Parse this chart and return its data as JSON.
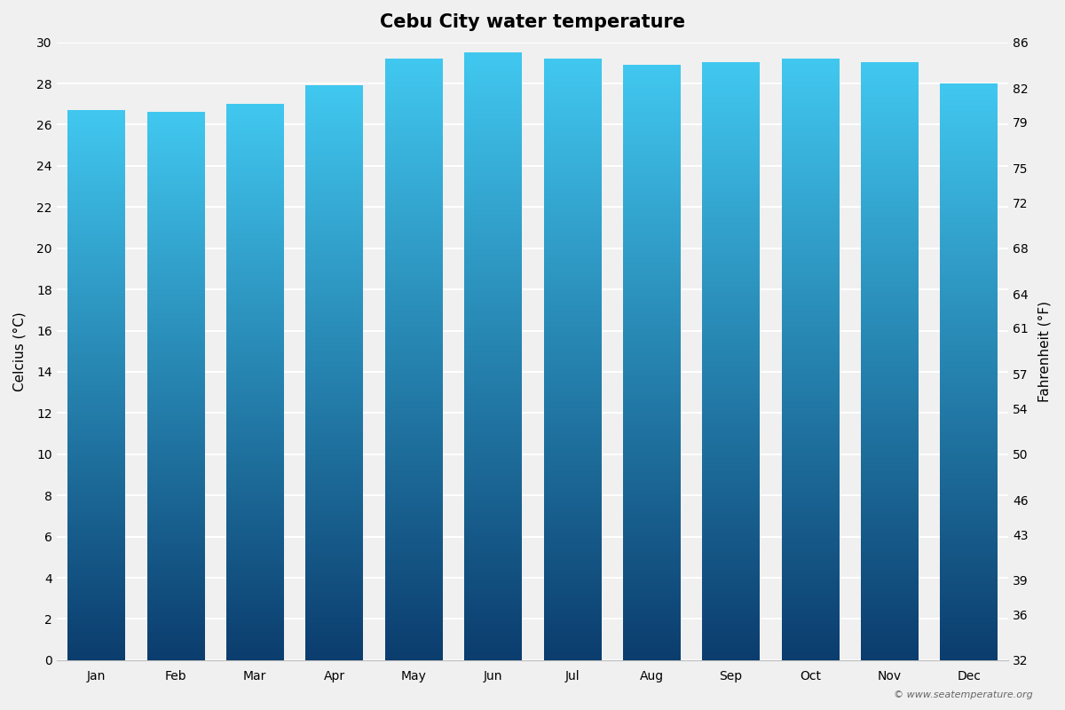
{
  "title": "Cebu City water temperature",
  "months": [
    "Jan",
    "Feb",
    "Mar",
    "Apr",
    "May",
    "Jun",
    "Jul",
    "Aug",
    "Sep",
    "Oct",
    "Nov",
    "Dec"
  ],
  "values_c": [
    26.7,
    26.6,
    27.0,
    27.9,
    29.2,
    29.5,
    29.2,
    28.9,
    29.0,
    29.2,
    29.0,
    28.0
  ],
  "ylabel_left": "Celcius (°C)",
  "ylabel_right": "Fahrenheit (°F)",
  "ylim_left": [
    0,
    30
  ],
  "yticks_left": [
    0,
    2,
    4,
    6,
    8,
    10,
    12,
    14,
    16,
    18,
    20,
    22,
    24,
    26,
    28,
    30
  ],
  "yticks_right": [
    32,
    36,
    39,
    43,
    46,
    50,
    54,
    57,
    61,
    64,
    68,
    72,
    75,
    79,
    82,
    86
  ],
  "background_color": "#f0f0f0",
  "bar_top_color": "#41c8f0",
  "bar_bottom_color": "#0b3d6e",
  "grid_color": "#ffffff",
  "watermark": "© www.seatemperature.org",
  "title_fontsize": 15,
  "label_fontsize": 11,
  "tick_fontsize": 10,
  "bar_width": 0.72
}
